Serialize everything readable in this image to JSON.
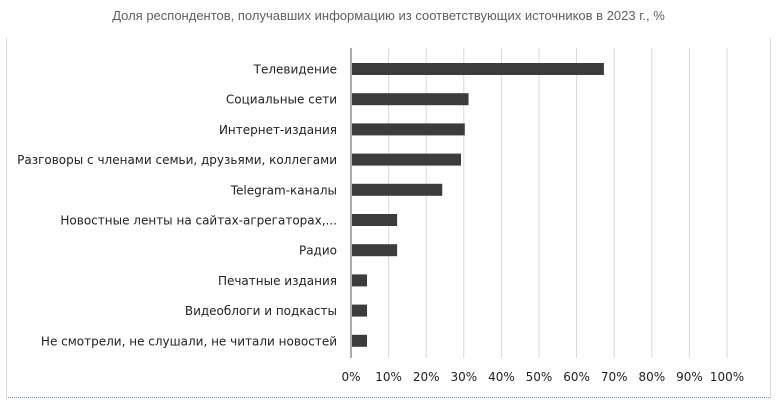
{
  "chart_data": {
    "type": "bar",
    "orientation": "horizontal",
    "title": "Доля респондентов, получавших информацию из соответствующих источников в 2023 г., %",
    "categories": [
      "Телевидение",
      "Социальные сети",
      "Интернет-издания",
      "Разговоры с членами семьи, друзьями, коллегами",
      "Telegram-каналы",
      "Новостные ленты на сайтах-агрегаторах,...",
      "Радио",
      "Печатные издания",
      "Видеоблоги и подкасты",
      "Не смотрели, не слушали, не читали новостей"
    ],
    "values": [
      67,
      31,
      30,
      29,
      24,
      12,
      12,
      4,
      4,
      4
    ],
    "xlim": [
      0,
      100
    ],
    "xticks": [
      "0%",
      "10%",
      "20%",
      "30%",
      "40%",
      "50%",
      "60%",
      "70%",
      "80%",
      "90%",
      "100%"
    ],
    "grid": "vertical",
    "colors": {
      "bar": "#3c3c3c",
      "grid": "#d9d9d9",
      "axis": "#595959"
    }
  }
}
